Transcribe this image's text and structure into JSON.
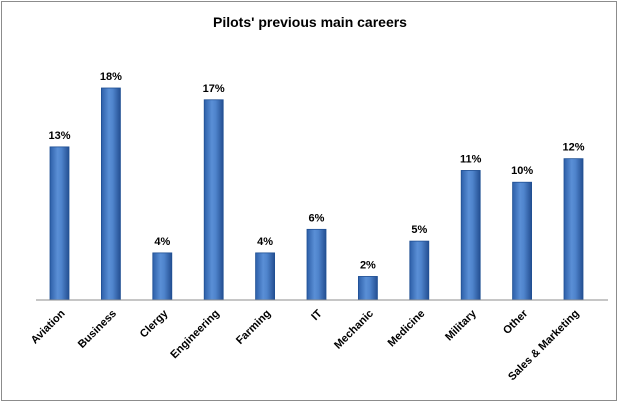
{
  "chart_data": {
    "type": "bar",
    "title": "Pilots' previous main careers",
    "categories": [
      "Aviation",
      "Business",
      "Clergy",
      "Engineering",
      "Farming",
      "IT",
      "Mechanic",
      "Medicine",
      "Military",
      "Other",
      "Sales & Marketing"
    ],
    "values": [
      13,
      18,
      4,
      17,
      4,
      6,
      2,
      5,
      11,
      10,
      12
    ],
    "value_labels": [
      "13%",
      "18%",
      "4%",
      "17%",
      "4%",
      "6%",
      "2%",
      "5%",
      "11%",
      "10%",
      "12%"
    ],
    "unit": "%",
    "ylim": [
      0,
      18
    ],
    "grid": false,
    "legend": "none",
    "bar_color": "#4a7fc8",
    "bar_edge_color": "#1f4f93"
  }
}
